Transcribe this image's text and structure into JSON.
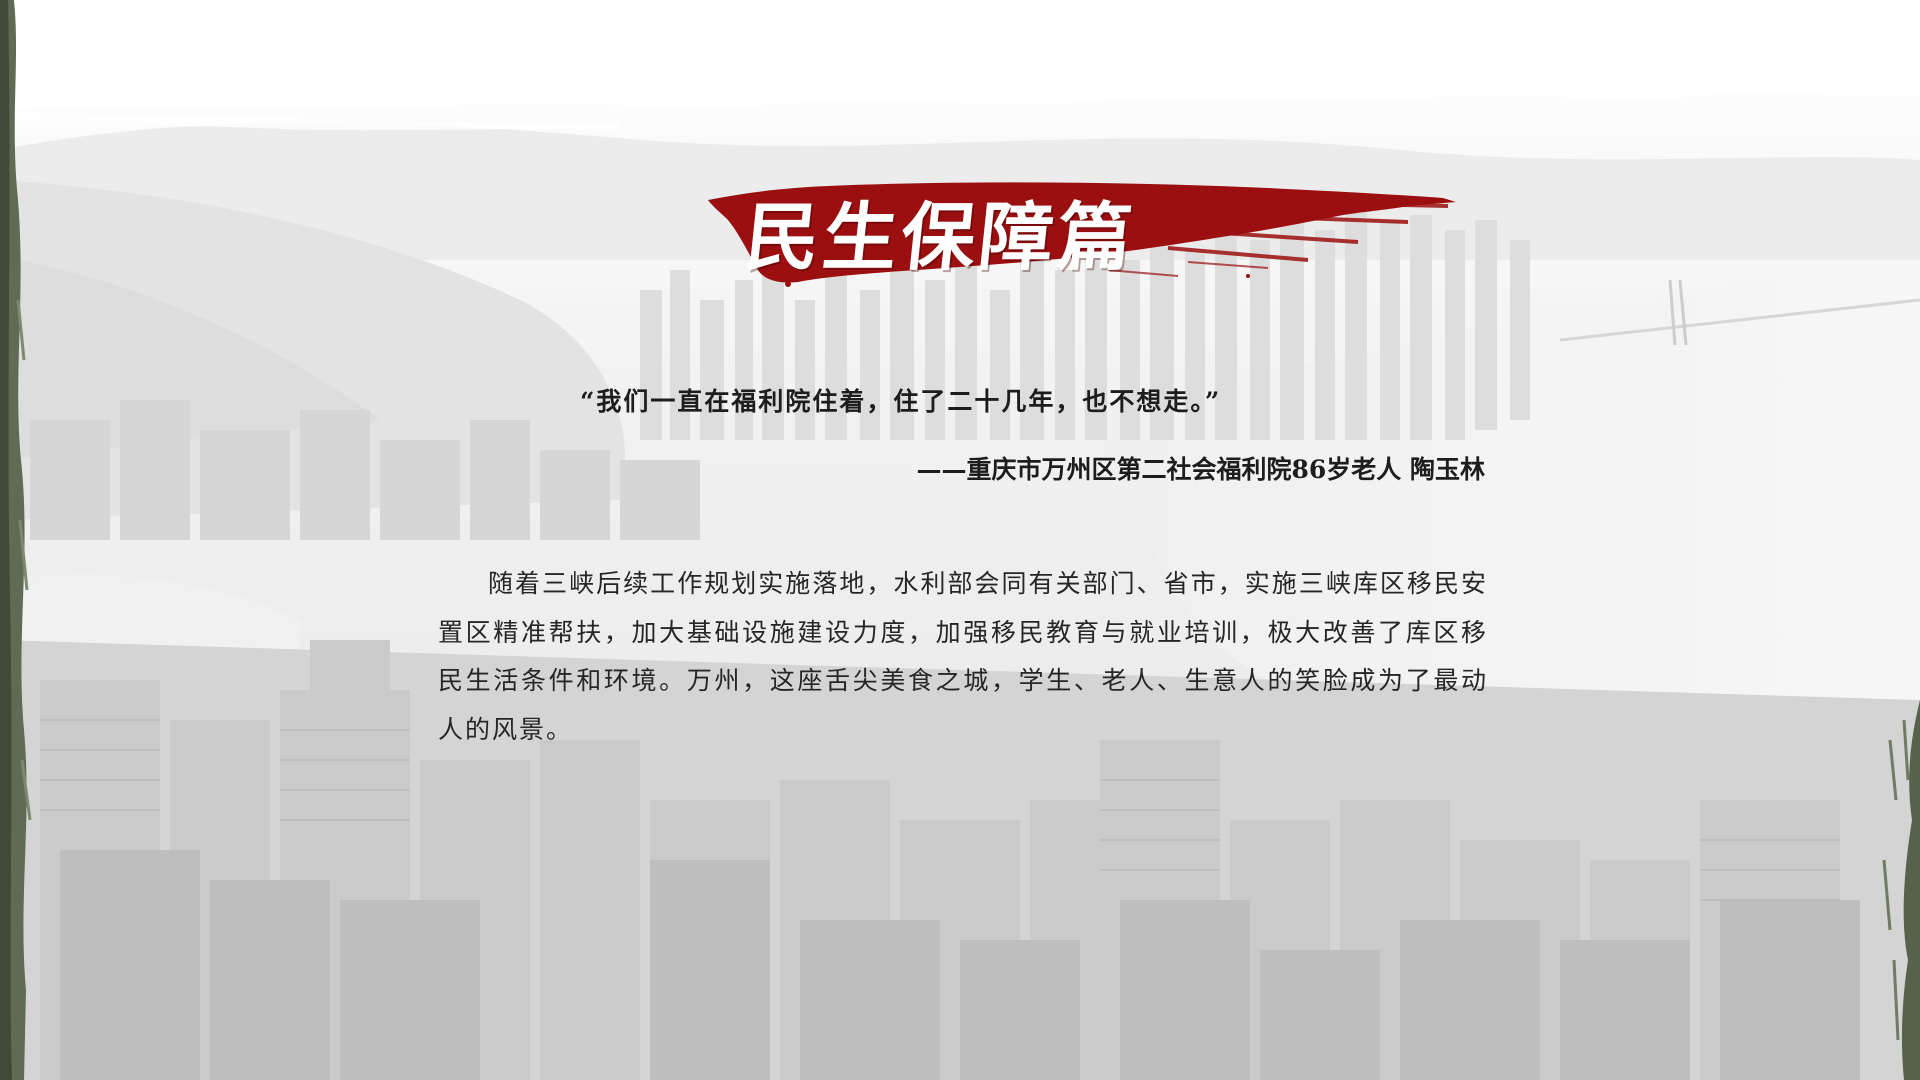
{
  "slide": {
    "title": "民生保障篇",
    "quote": "“我们一直在福利院住着，住了二十几年，也不想走。”",
    "attribution": "——重庆市万州区第二社会福利院86岁老人  陶玉林",
    "body": "随着三峡后续工作规划实施落地，水利部会同有关部门、省市，实施三峡库区移民安置区精准帮扶，加大基础设施建设力度，加强移民教育与就业培训，极大改善了库区移民生活条件和环境。万州，这座舌尖美食之城，学生、老人、生意人的笑脸成为了最动人的风景。"
  },
  "colors": {
    "accent_red": "#9b0f10",
    "text": "#1d1d1d",
    "background": "#f3f3f3"
  }
}
